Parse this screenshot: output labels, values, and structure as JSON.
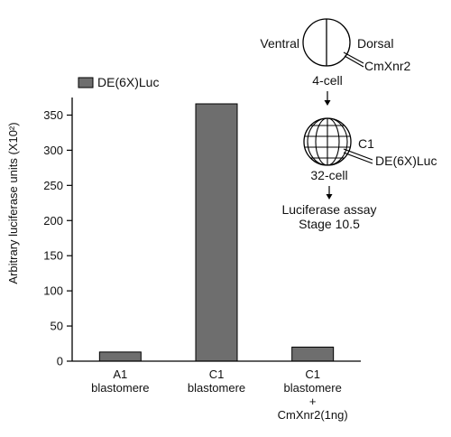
{
  "chart_data": {
    "type": "bar",
    "categories": [
      [
        "A1",
        "blastomere"
      ],
      [
        "C1",
        "blastomere"
      ],
      [
        "C1",
        "blastomere",
        "+",
        "CmXnr2(1ng)"
      ]
    ],
    "series": [
      {
        "name": "DE(6X)Luc",
        "values": [
          13,
          366,
          20
        ],
        "color": "#6e6e6e"
      }
    ],
    "ylabel": "Arbitrary luciferase units (X10²)",
    "ylim": [
      0,
      375
    ],
    "yticks": [
      0,
      50,
      100,
      150,
      200,
      250,
      300,
      350
    ],
    "grid": false,
    "legend_placement": "top-left"
  },
  "diagram": {
    "ventral_label": "Ventral",
    "dorsal_label": "Dorsal",
    "injection1_label": "CmXnr2",
    "stage1_label": "4-cell",
    "blastomere_label": "C1",
    "injection2_label": "DE(6X)Luc",
    "stage2_label": "32-cell",
    "assay_line1": "Luciferase assay",
    "assay_line2": "Stage 10.5"
  }
}
